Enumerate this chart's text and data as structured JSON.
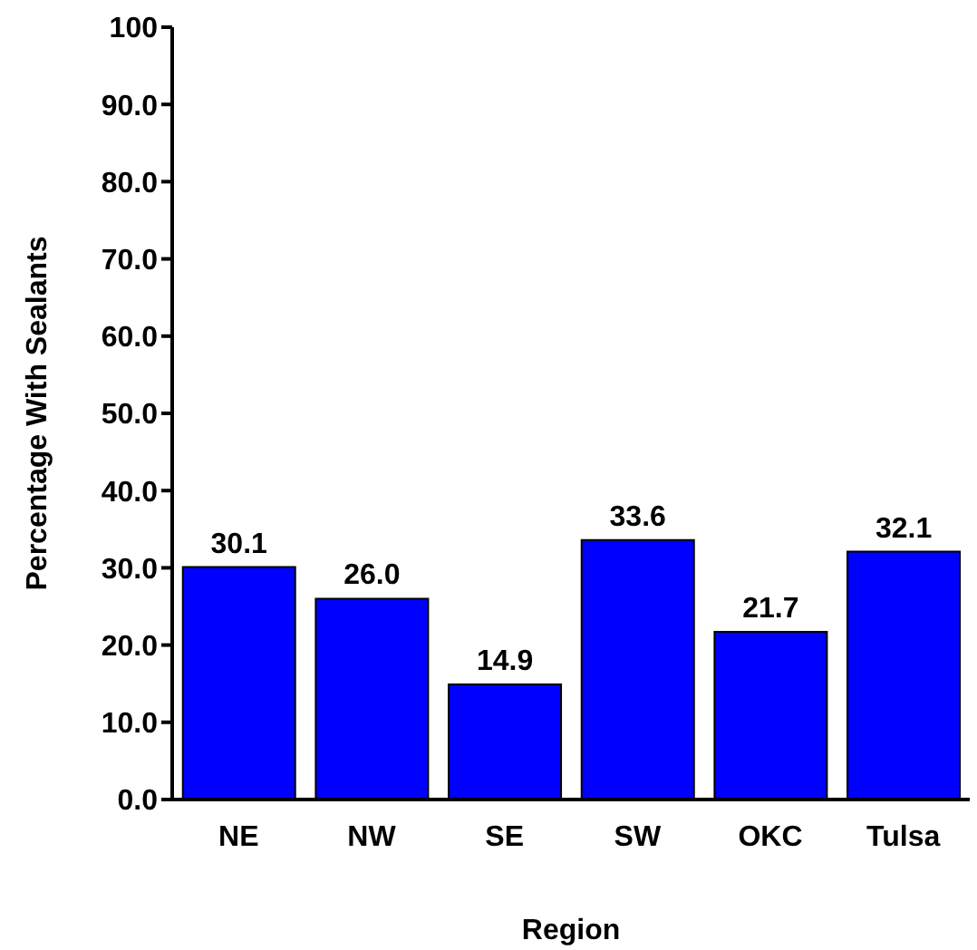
{
  "chart_data": {
    "type": "bar",
    "xlabel": "Region",
    "ylabel": "Percentage With Sealants",
    "categories": [
      "NE",
      "NW",
      "SE",
      "SW",
      "OKC",
      "Tulsa"
    ],
    "values": [
      30.1,
      26.0,
      14.9,
      33.6,
      21.7,
      32.1
    ],
    "value_labels": [
      "30.1",
      "26.0",
      "14.9",
      "33.6",
      "21.7",
      "32.1"
    ],
    "color": "#0000ff",
    "ylim": [
      0,
      100
    ],
    "yticks": [
      {
        "value": 0,
        "label": "0.0"
      },
      {
        "value": 10,
        "label": "10.0"
      },
      {
        "value": 20,
        "label": "20.0"
      },
      {
        "value": 30,
        "label": "30.0"
      },
      {
        "value": 40,
        "label": "40.0"
      },
      {
        "value": 50,
        "label": "50.0"
      },
      {
        "value": 60,
        "label": "60.0"
      },
      {
        "value": 70,
        "label": "70.0"
      },
      {
        "value": 80,
        "label": "80.0"
      },
      {
        "value": 90,
        "label": "90.0"
      },
      100
    ],
    "grid": false,
    "legend": false
  }
}
